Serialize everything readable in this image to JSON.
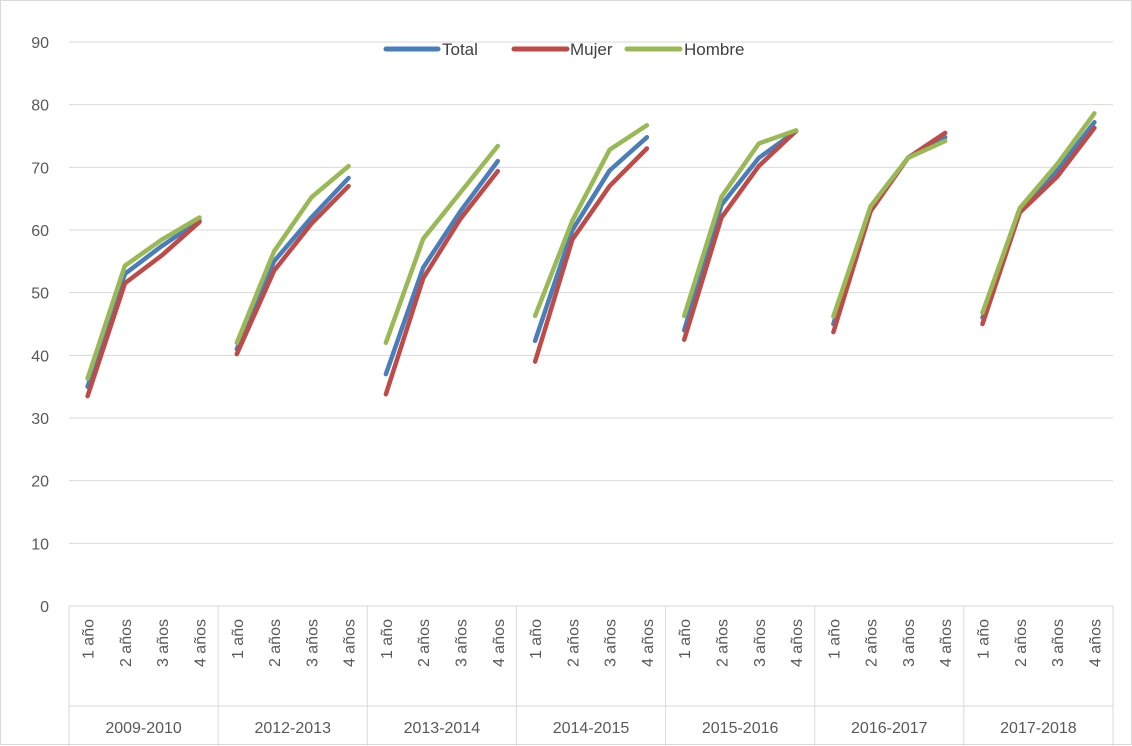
{
  "chart_data": {
    "type": "line",
    "title": "",
    "xlabel": "",
    "ylabel": "",
    "ylim": [
      0,
      90
    ],
    "yticks": [
      0,
      10,
      20,
      30,
      40,
      50,
      60,
      70,
      80,
      90
    ],
    "grid": true,
    "legend_position": "top-center",
    "groups": [
      "2009-2010",
      "2012-2013",
      "2013-2014",
      "2014-2015",
      "2015-2016",
      "2016-2017",
      "2017-2018"
    ],
    "categories": [
      "1 año",
      "2 años",
      "3 años",
      "4 años"
    ],
    "series": [
      {
        "name": "Total",
        "color": "#4a7ebb",
        "values": [
          [
            35,
            53,
            57.5,
            61.5
          ],
          [
            41,
            55,
            62,
            68.3
          ],
          [
            37,
            54,
            63,
            71
          ],
          [
            42.3,
            60,
            69.5,
            74.8
          ],
          [
            44,
            64,
            71.5,
            75.8
          ],
          [
            45,
            63.3,
            71.5,
            74.8
          ],
          [
            46,
            63,
            69.5,
            77.2
          ]
        ]
      },
      {
        "name": "Mujer",
        "color": "#be4b48",
        "values": [
          [
            33.5,
            51.5,
            56,
            61.3
          ],
          [
            40.2,
            53.5,
            61,
            67
          ],
          [
            33.8,
            52.3,
            61.8,
            69.4
          ],
          [
            39,
            58.5,
            67,
            73
          ],
          [
            42.5,
            62,
            70.2,
            75.8
          ],
          [
            43.7,
            63,
            71.5,
            75.5
          ],
          [
            45,
            62.8,
            68.5,
            76.3
          ]
        ]
      },
      {
        "name": "Hombre",
        "color": "#98b954",
        "values": [
          [
            36.3,
            54.3,
            58.5,
            62
          ],
          [
            42,
            56.6,
            65.2,
            70.2
          ],
          [
            42,
            58.6,
            66,
            73.4
          ],
          [
            46.3,
            61.5,
            72.8,
            76.7
          ],
          [
            46.3,
            65.3,
            73.8,
            75.9
          ],
          [
            46.2,
            63.8,
            71.5,
            74.2
          ],
          [
            46.8,
            63.5,
            70.5,
            78.6
          ]
        ]
      }
    ]
  }
}
